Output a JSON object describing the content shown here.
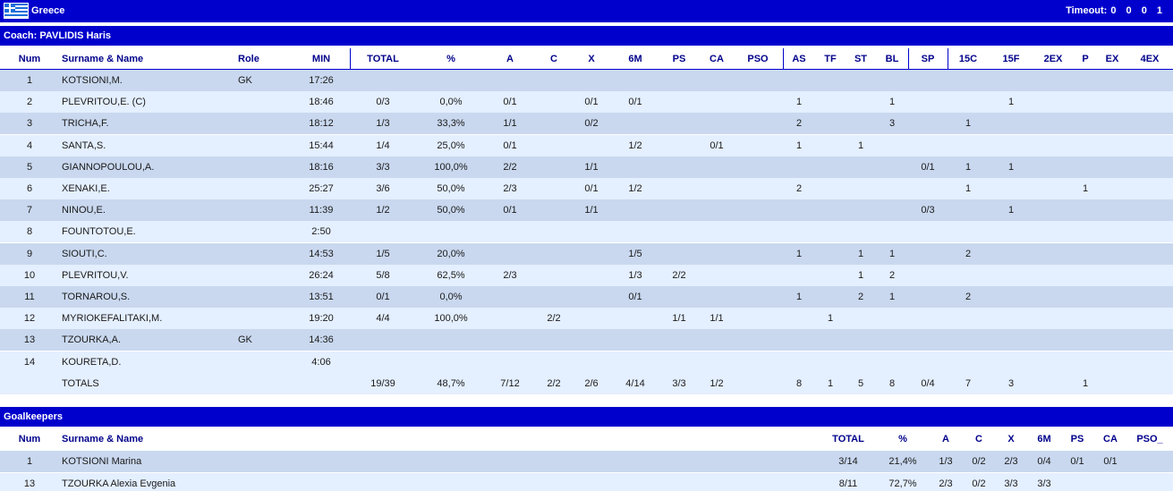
{
  "team": {
    "name": "Greece",
    "timeout_label": "Timeout:",
    "timeout_values": "0 0 0 1",
    "flag_icon": "greece-flag-icon"
  },
  "coach_label": "Coach: PAVLIDIS Haris",
  "player_headers": [
    "Num",
    "Surname & Name",
    "Role",
    "MIN",
    "TOTAL",
    "%",
    "A",
    "C",
    "X",
    "6M",
    "PS",
    "CA",
    "PSO",
    "AS",
    "TF",
    "ST",
    "BL",
    "SP",
    "15C",
    "15F",
    "2EX",
    "P",
    "EX",
    "4EX"
  ],
  "players": [
    {
      "num": "1",
      "name": "KOTSIONI,M.",
      "role": "GK",
      "min": "17:26",
      "total": "",
      "pct": "",
      "a": "",
      "c": "",
      "x": "",
      "m6": "",
      "ps": "",
      "ca": "",
      "pso": "",
      "as": "",
      "tf": "",
      "st": "",
      "bl": "",
      "sp": "",
      "c15": "",
      "f15": "",
      "ex2": "",
      "p": "",
      "ex": "",
      "ex4": ""
    },
    {
      "num": "2",
      "name": "PLEVRITOU,E.  (C)",
      "role": "",
      "min": "18:46",
      "total": "0/3",
      "pct": "0,0%",
      "a": "0/1",
      "c": "",
      "x": "0/1",
      "m6": "0/1",
      "ps": "",
      "ca": "",
      "pso": "",
      "as": "1",
      "tf": "",
      "st": "",
      "bl": "1",
      "sp": "",
      "c15": "",
      "f15": "1",
      "ex2": "",
      "p": "",
      "ex": "",
      "ex4": ""
    },
    {
      "num": "3",
      "name": "TRICHA,F.",
      "role": "",
      "min": "18:12",
      "total": "1/3",
      "pct": "33,3%",
      "a": "1/1",
      "c": "",
      "x": "0/2",
      "m6": "",
      "ps": "",
      "ca": "",
      "pso": "",
      "as": "2",
      "tf": "",
      "st": "",
      "bl": "3",
      "sp": "",
      "c15": "1",
      "f15": "",
      "ex2": "",
      "p": "",
      "ex": "",
      "ex4": ""
    },
    {
      "num": "4",
      "name": "SANTA,S.",
      "role": "",
      "min": "15:44",
      "total": "1/4",
      "pct": "25,0%",
      "a": "0/1",
      "c": "",
      "x": "",
      "m6": "1/2",
      "ps": "",
      "ca": "0/1",
      "pso": "",
      "as": "1",
      "tf": "",
      "st": "1",
      "bl": "",
      "sp": "",
      "c15": "",
      "f15": "",
      "ex2": "",
      "p": "",
      "ex": "",
      "ex4": ""
    },
    {
      "num": "5",
      "name": "GIANNOPOULOU,A.",
      "role": "",
      "min": "18:16",
      "total": "3/3",
      "pct": "100,0%",
      "a": "2/2",
      "c": "",
      "x": "1/1",
      "m6": "",
      "ps": "",
      "ca": "",
      "pso": "",
      "as": "",
      "tf": "",
      "st": "",
      "bl": "",
      "sp": "0/1",
      "c15": "1",
      "f15": "1",
      "ex2": "",
      "p": "",
      "ex": "",
      "ex4": ""
    },
    {
      "num": "6",
      "name": "XENAKI,E.",
      "role": "",
      "min": "25:27",
      "total": "3/6",
      "pct": "50,0%",
      "a": "2/3",
      "c": "",
      "x": "0/1",
      "m6": "1/2",
      "ps": "",
      "ca": "",
      "pso": "",
      "as": "2",
      "tf": "",
      "st": "",
      "bl": "",
      "sp": "",
      "c15": "1",
      "f15": "",
      "ex2": "",
      "p": "1",
      "ex": "",
      "ex4": ""
    },
    {
      "num": "7",
      "name": "NINOU,E.",
      "role": "",
      "min": "11:39",
      "total": "1/2",
      "pct": "50,0%",
      "a": "0/1",
      "c": "",
      "x": "1/1",
      "m6": "",
      "ps": "",
      "ca": "",
      "pso": "",
      "as": "",
      "tf": "",
      "st": "",
      "bl": "",
      "sp": "0/3",
      "c15": "",
      "f15": "1",
      "ex2": "",
      "p": "",
      "ex": "",
      "ex4": ""
    },
    {
      "num": "8",
      "name": "FOUNTOTOU,E.",
      "role": "",
      "min": "2:50",
      "total": "",
      "pct": "",
      "a": "",
      "c": "",
      "x": "",
      "m6": "",
      "ps": "",
      "ca": "",
      "pso": "",
      "as": "",
      "tf": "",
      "st": "",
      "bl": "",
      "sp": "",
      "c15": "",
      "f15": "",
      "ex2": "",
      "p": "",
      "ex": "",
      "ex4": ""
    },
    {
      "num": "9",
      "name": "SIOUTI,C.",
      "role": "",
      "min": "14:53",
      "total": "1/5",
      "pct": "20,0%",
      "a": "",
      "c": "",
      "x": "",
      "m6": "1/5",
      "ps": "",
      "ca": "",
      "pso": "",
      "as": "1",
      "tf": "",
      "st": "1",
      "bl": "1",
      "sp": "",
      "c15": "2",
      "f15": "",
      "ex2": "",
      "p": "",
      "ex": "",
      "ex4": ""
    },
    {
      "num": "10",
      "name": "PLEVRITOU,V.",
      "role": "",
      "min": "26:24",
      "total": "5/8",
      "pct": "62,5%",
      "a": "2/3",
      "c": "",
      "x": "",
      "m6": "1/3",
      "ps": "2/2",
      "ca": "",
      "pso": "",
      "as": "",
      "tf": "",
      "st": "1",
      "bl": "2",
      "sp": "",
      "c15": "",
      "f15": "",
      "ex2": "",
      "p": "",
      "ex": "",
      "ex4": ""
    },
    {
      "num": "11",
      "name": "TORNAROU,S.",
      "role": "",
      "min": "13:51",
      "total": "0/1",
      "pct": "0,0%",
      "a": "",
      "c": "",
      "x": "",
      "m6": "0/1",
      "ps": "",
      "ca": "",
      "pso": "",
      "as": "1",
      "tf": "",
      "st": "2",
      "bl": "1",
      "sp": "",
      "c15": "2",
      "f15": "",
      "ex2": "",
      "p": "",
      "ex": "",
      "ex4": ""
    },
    {
      "num": "12",
      "name": "MYRIOKEFALITAKI,M.",
      "role": "",
      "min": "19:20",
      "total": "4/4",
      "pct": "100,0%",
      "a": "",
      "c": "2/2",
      "x": "",
      "m6": "",
      "ps": "1/1",
      "ca": "1/1",
      "pso": "",
      "as": "",
      "tf": "1",
      "st": "",
      "bl": "",
      "sp": "",
      "c15": "",
      "f15": "",
      "ex2": "",
      "p": "",
      "ex": "",
      "ex4": ""
    },
    {
      "num": "13",
      "name": "TZOURKA,A.",
      "role": "GK",
      "min": "14:36",
      "total": "",
      "pct": "",
      "a": "",
      "c": "",
      "x": "",
      "m6": "",
      "ps": "",
      "ca": "",
      "pso": "",
      "as": "",
      "tf": "",
      "st": "",
      "bl": "",
      "sp": "",
      "c15": "",
      "f15": "",
      "ex2": "",
      "p": "",
      "ex": "",
      "ex4": ""
    },
    {
      "num": "14",
      "name": "KOURETA,D.",
      "role": "",
      "min": "4:06",
      "total": "",
      "pct": "",
      "a": "",
      "c": "",
      "x": "",
      "m6": "",
      "ps": "",
      "ca": "",
      "pso": "",
      "as": "",
      "tf": "",
      "st": "",
      "bl": "",
      "sp": "",
      "c15": "",
      "f15": "",
      "ex2": "",
      "p": "",
      "ex": "",
      "ex4": ""
    }
  ],
  "totals": {
    "num": "",
    "name": "TOTALS",
    "role": "",
    "min": "",
    "total": "19/39",
    "pct": "48,7%",
    "a": "7/12",
    "c": "2/2",
    "x": "2/6",
    "m6": "4/14",
    "ps": "3/3",
    "ca": "1/2",
    "pso": "",
    "as": "8",
    "tf": "1",
    "st": "5",
    "bl": "8",
    "sp": "0/4",
    "c15": "7",
    "f15": "3",
    "ex2": "",
    "p": "1",
    "ex": "",
    "ex4": ""
  },
  "goalkeepers_label": "Goalkeepers",
  "gk_headers": [
    "Num",
    "Surname & Name",
    "TOTAL",
    "%",
    "A",
    "C",
    "X",
    "6M",
    "PS",
    "CA",
    "PSO_"
  ],
  "goalkeepers": [
    {
      "num": "1",
      "name": "KOTSIONI Marina",
      "total": "3/14",
      "pct": "21,4%",
      "a": "1/3",
      "c": "0/2",
      "x": "2/3",
      "m6": "0/4",
      "ps": "0/1",
      "ca": "0/1",
      "pso": ""
    },
    {
      "num": "13",
      "name": "TZOURKA Alexia Evgenia",
      "total": "8/11",
      "pct": "72,7%",
      "a": "2/3",
      "c": "0/2",
      "x": "3/3",
      "m6": "3/3",
      "ps": "",
      "ca": "",
      "pso": ""
    }
  ],
  "colors": {
    "header_bar": "#0000cc",
    "header_text": "#00008b",
    "row_light": "#e4efff",
    "row_mid": "#c9d8ef"
  }
}
